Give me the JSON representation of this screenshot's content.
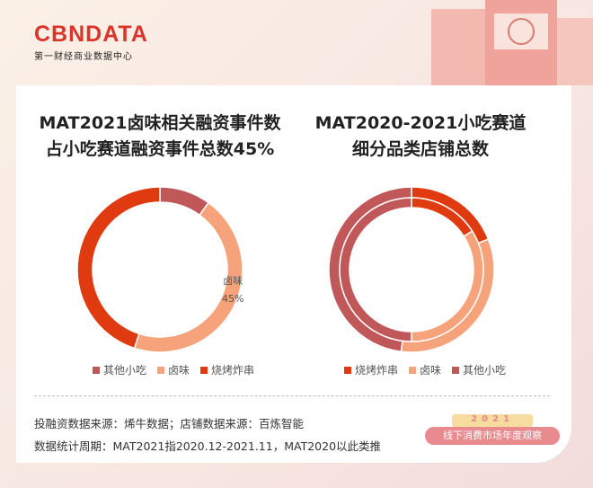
{
  "brand": {
    "logo_prefix": "CB",
    "logo_mark": "N",
    "logo_suffix": "DATA",
    "tagline": "第一财经商业数据中心"
  },
  "colors": {
    "other": "#c0585a",
    "luwei": "#f6a27a",
    "bbq": "#df3a10"
  },
  "chart_data": [
    {
      "type": "pie",
      "variant": "donut",
      "title": "MAT2021卤味相关融资事件数占小吃赛道融资事件总数45%",
      "title_lines": [
        "MAT2021卤味相关融资事件数",
        "占小吃赛道融资事件总数45%"
      ],
      "categories": [
        "其他小吃",
        "卤味",
        "烧烤炸串"
      ],
      "values": [
        10,
        45,
        45
      ],
      "annotation": {
        "label": "卤味",
        "value": "45%"
      },
      "legend": "bottom"
    },
    {
      "type": "pie",
      "variant": "double-donut",
      "title": "MAT2020-2021小吃赛道细分品类店铺总数",
      "title_lines": [
        "MAT2020-2021小吃赛道",
        "细分品类店铺总数"
      ],
      "categories": [
        "烧烤炸串",
        "卤味",
        "其他小吃"
      ],
      "series": [
        {
          "ring": "outer",
          "values": [
            19,
            33,
            48
          ]
        },
        {
          "ring": "inner",
          "values": [
            16,
            34,
            50
          ]
        }
      ],
      "legend": "bottom"
    }
  ],
  "footer": {
    "source": "投融资数据来源：烯牛数据；店铺数据来源：百炼智能",
    "period": "数据统计周期：MAT2021指2020.12-2021.11，MAT2020以此类推"
  },
  "badge": {
    "year": "2021",
    "text": "线下消费市场年度观察"
  }
}
